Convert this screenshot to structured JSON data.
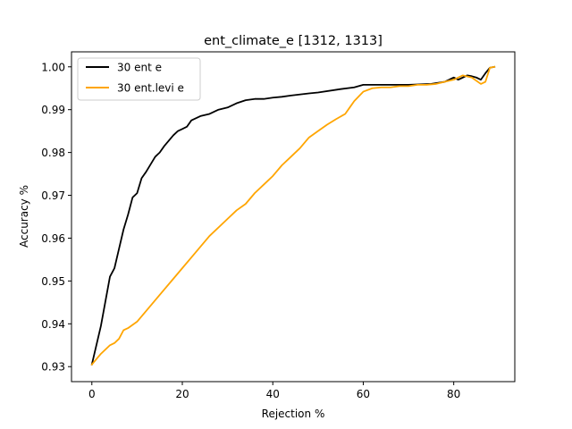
{
  "chart_data": {
    "type": "line",
    "title": "ent_climate_e  [1312, 1313]",
    "xlabel": "Rejection %",
    "ylabel": "Accuracy %",
    "xlim": [
      -4.5,
      93.5
    ],
    "ylim": [
      0.9265,
      1.0035
    ],
    "x_ticks": [
      0,
      20,
      40,
      60,
      80
    ],
    "y_ticks": [
      0.93,
      0.94,
      0.95,
      0.96,
      0.97,
      0.98,
      0.99,
      1.0
    ],
    "y_tick_labels": [
      "0.93",
      "0.94",
      "0.95",
      "0.96",
      "0.97",
      "0.98",
      "0.99",
      "1.00"
    ],
    "grid": false,
    "legend_position": "upper-left",
    "series": [
      {
        "name": "30 ent e",
        "color": "#000000",
        "x": [
          0,
          2,
          4,
          5,
          6,
          7,
          8,
          9,
          10,
          11,
          12,
          14,
          15,
          16,
          18,
          19,
          20,
          21,
          22,
          24,
          26,
          27,
          28,
          30,
          32,
          34,
          36,
          38,
          40,
          42,
          44,
          48,
          50,
          55,
          58,
          60,
          65,
          70,
          75,
          78,
          80,
          81,
          82,
          83,
          84,
          85,
          86,
          87,
          88,
          89
        ],
        "values": [
          0.9305,
          0.9395,
          0.951,
          0.953,
          0.9575,
          0.962,
          0.9655,
          0.9695,
          0.9705,
          0.974,
          0.9755,
          0.979,
          0.98,
          0.9815,
          0.984,
          0.985,
          0.9855,
          0.986,
          0.9875,
          0.9885,
          0.989,
          0.9895,
          0.99,
          0.9905,
          0.9915,
          0.9922,
          0.9925,
          0.9925,
          0.9928,
          0.993,
          0.9933,
          0.9938,
          0.994,
          0.9948,
          0.9952,
          0.9958,
          0.9958,
          0.9958,
          0.996,
          0.9965,
          0.9975,
          0.997,
          0.9975,
          0.998,
          0.9978,
          0.9975,
          0.997,
          0.9985,
          0.9998,
          1.0
        ]
      },
      {
        "name": "30 ent.levi e",
        "color": "#ffa500",
        "x": [
          0,
          2,
          4,
          5,
          6,
          7,
          8,
          10,
          12,
          14,
          16,
          18,
          20,
          22,
          24,
          26,
          28,
          30,
          32,
          34,
          36,
          38,
          40,
          42,
          44,
          46,
          48,
          50,
          52,
          54,
          56,
          57,
          58,
          60,
          62,
          64,
          66,
          68,
          70,
          72,
          74,
          76,
          78,
          80,
          82,
          84,
          86,
          87,
          88,
          89
        ],
        "values": [
          0.9305,
          0.933,
          0.935,
          0.9355,
          0.9365,
          0.9385,
          0.939,
          0.9405,
          0.943,
          0.9455,
          0.948,
          0.9505,
          0.953,
          0.9555,
          0.958,
          0.9605,
          0.9625,
          0.9645,
          0.9665,
          0.968,
          0.9705,
          0.9725,
          0.9745,
          0.977,
          0.979,
          0.981,
          0.9835,
          0.985,
          0.9865,
          0.9878,
          0.989,
          0.9905,
          0.992,
          0.9942,
          0.995,
          0.9952,
          0.9952,
          0.9955,
          0.9955,
          0.9958,
          0.9958,
          0.996,
          0.9965,
          0.997,
          0.998,
          0.9975,
          0.996,
          0.9965,
          0.9998,
          1.0
        ]
      }
    ]
  }
}
